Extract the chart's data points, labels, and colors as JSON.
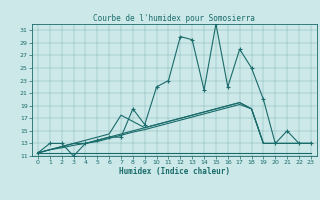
{
  "title": "Courbe de l'humidex pour Somosierra",
  "xlabel": "Humidex (Indice chaleur)",
  "bg_color": "#cce8e8",
  "line_color": "#1a6b6b",
  "xlim": [
    -0.5,
    23.5
  ],
  "ylim": [
    11,
    32
  ],
  "yticks": [
    11,
    13,
    15,
    17,
    19,
    21,
    23,
    25,
    27,
    29,
    31
  ],
  "xticks": [
    0,
    1,
    2,
    3,
    4,
    5,
    6,
    7,
    8,
    9,
    10,
    11,
    12,
    13,
    14,
    15,
    16,
    17,
    18,
    19,
    20,
    21,
    22,
    23
  ],
  "series": [
    {
      "x": [
        0,
        1,
        2,
        3,
        4,
        5,
        6,
        7,
        8,
        9,
        10,
        11,
        12,
        13,
        14,
        15,
        16,
        17,
        18,
        19,
        20,
        21,
        22,
        23
      ],
      "y": [
        11.5,
        13,
        13,
        11,
        13,
        13.5,
        14,
        14,
        18.5,
        16,
        22,
        23,
        30,
        29.5,
        21.5,
        32,
        22,
        28,
        25,
        20,
        13,
        15,
        13,
        13
      ],
      "marker": "+"
    },
    {
      "x": [
        0,
        1,
        2,
        3,
        4,
        5,
        6,
        7,
        8,
        9,
        10,
        11,
        12,
        13,
        14,
        15,
        16,
        17,
        18,
        19,
        20,
        21,
        22,
        23
      ],
      "y": [
        11.5,
        12,
        12.5,
        13,
        13,
        13.5,
        14,
        14.5,
        15,
        15.5,
        16,
        16.5,
        17,
        17.5,
        18,
        18.5,
        19,
        19.5,
        18.5,
        13,
        13,
        13,
        13,
        13
      ],
      "marker": null
    },
    {
      "x": [
        0,
        1,
        2,
        3,
        4,
        5,
        6,
        7,
        8,
        9,
        10,
        11,
        12,
        13,
        14,
        15,
        16,
        17,
        18,
        19,
        20,
        21,
        22,
        23
      ],
      "y": [
        11.5,
        12,
        12.3,
        12.7,
        13,
        13.3,
        13.8,
        14.3,
        14.8,
        15.2,
        15.7,
        16.2,
        16.7,
        17.2,
        17.7,
        18.2,
        18.7,
        19.2,
        18.5,
        13,
        13,
        13,
        13,
        13
      ],
      "marker": null
    },
    {
      "x": [
        0,
        1,
        2,
        3,
        4,
        5,
        6,
        7,
        8,
        9,
        10,
        11,
        12,
        13,
        14,
        15,
        16,
        17,
        18,
        19,
        20,
        21,
        22,
        23
      ],
      "y": [
        11.5,
        12,
        12.5,
        13,
        13.5,
        14,
        14.5,
        17.5,
        16.5,
        15.5,
        16,
        16.5,
        17,
        17.5,
        18,
        18.5,
        19,
        19.5,
        18.5,
        13,
        13,
        13,
        13,
        13
      ],
      "marker": null
    },
    {
      "x": [
        0,
        1,
        2,
        3,
        4,
        5,
        6,
        7,
        8,
        9,
        10,
        11,
        12,
        13,
        14,
        15,
        16,
        17,
        18,
        19,
        20,
        21,
        22,
        23
      ],
      "y": [
        11.5,
        11.5,
        11.5,
        11.5,
        11.5,
        11.5,
        11.5,
        11.5,
        11.5,
        11.5,
        11.5,
        11.5,
        11.5,
        11.5,
        11.5,
        11.5,
        11.5,
        11.5,
        11.5,
        11.5,
        11.5,
        11.5,
        11.5,
        11.5
      ],
      "marker": null
    }
  ]
}
